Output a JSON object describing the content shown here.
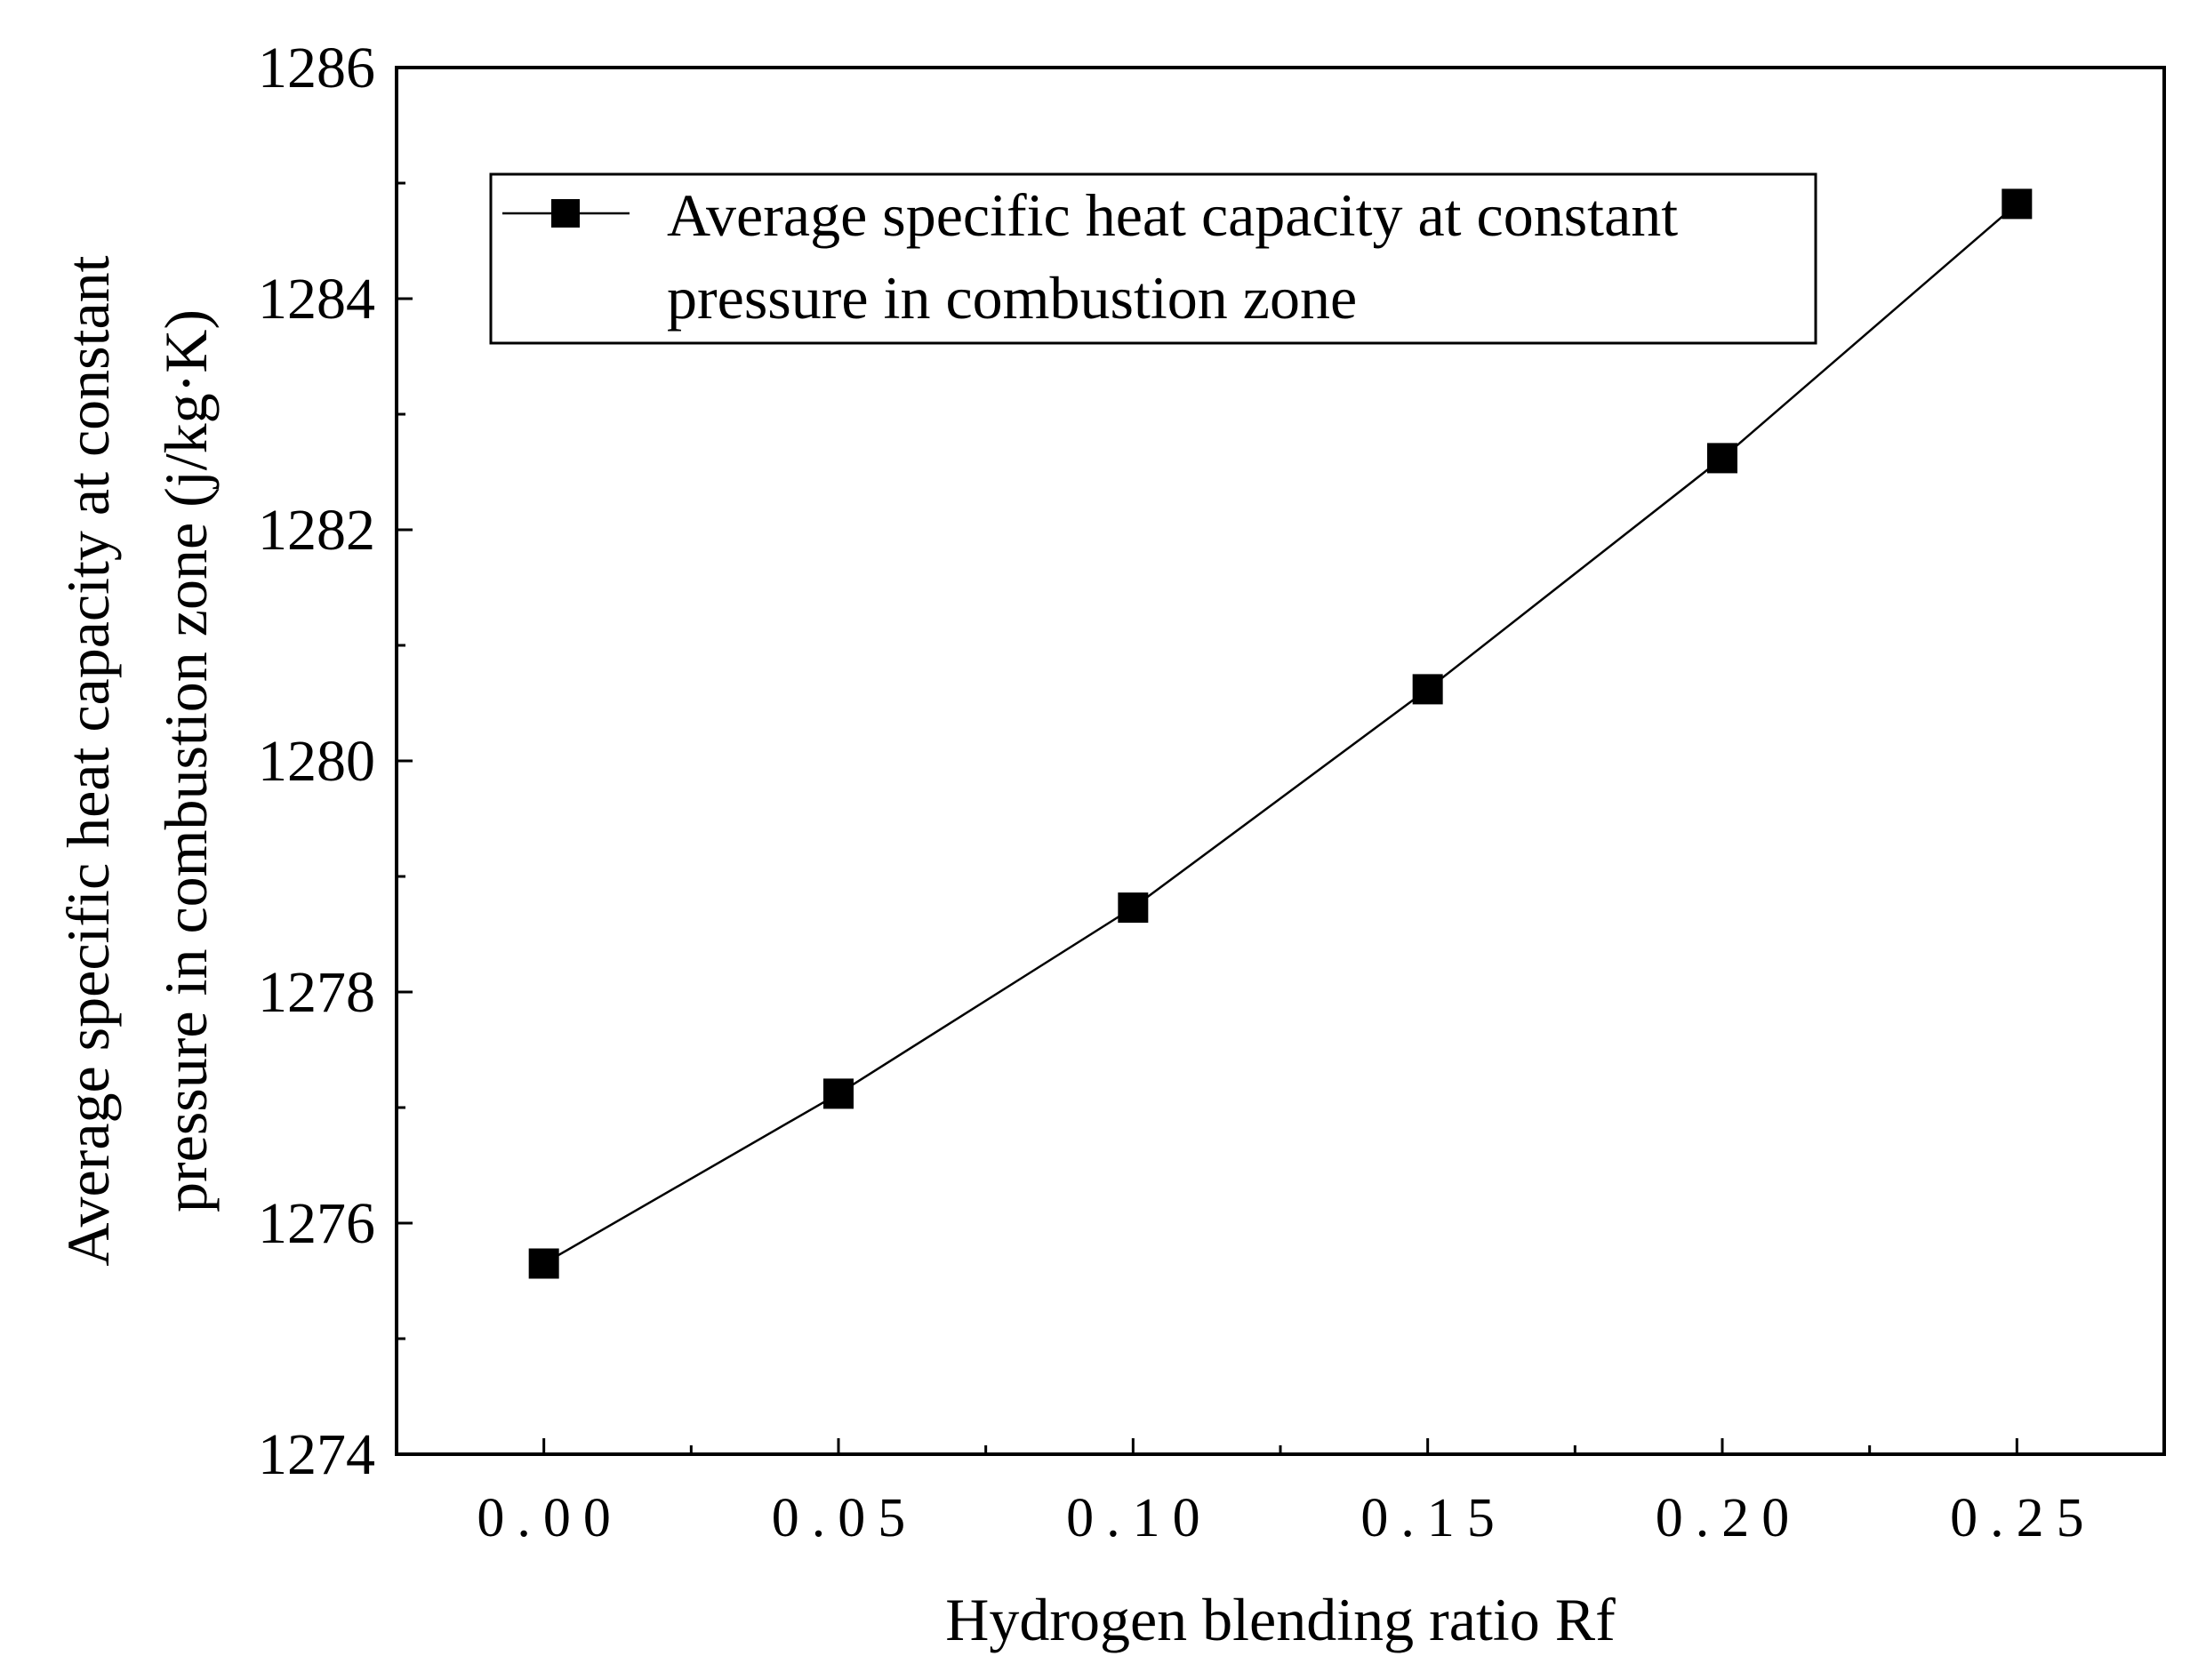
{
  "chart_data": {
    "type": "line",
    "title": "",
    "xlabel": "Hydrogen blending ratio Rf",
    "ylabel_lines": [
      "Average specific heat capacity at constant",
      "pressure in combustion zone (j/kg·K)"
    ],
    "x": [
      0.0,
      0.05,
      0.1,
      0.15,
      0.2,
      0.25
    ],
    "xtick_labels": [
      "0.00",
      "0.05",
      "0.10",
      "0.15",
      "0.20",
      "0.25"
    ],
    "xlim": [
      -0.025,
      0.275
    ],
    "ylim": [
      1274,
      1286
    ],
    "yticks": [
      1274,
      1276,
      1278,
      1280,
      1282,
      1284,
      1286
    ],
    "ytick_labels": [
      "1274",
      "1276",
      "1278",
      "1280",
      "1282",
      "1284",
      "1286"
    ],
    "series": [
      {
        "name_lines": [
          "Average specific heat capacity at constant",
          "pressure in combustion zone"
        ],
        "values": [
          1275.65,
          1277.12,
          1278.73,
          1280.62,
          1282.62,
          1284.82
        ],
        "marker": "square",
        "color": "#000000"
      }
    ],
    "grid": false,
    "legend_position": "top"
  }
}
